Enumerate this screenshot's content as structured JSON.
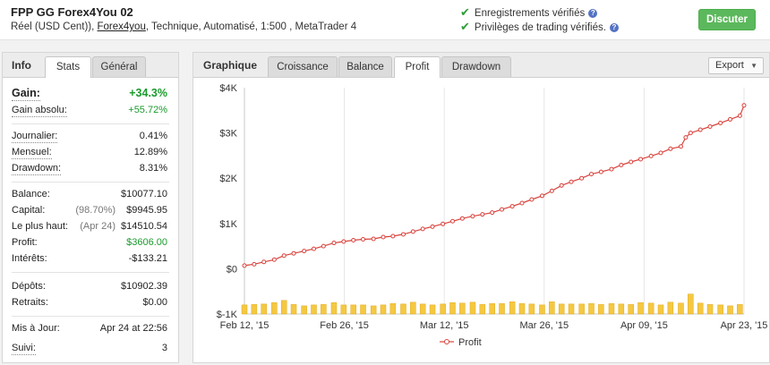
{
  "header": {
    "title": "FPP GG Forex4You 02",
    "meta_prefix": "Réel (USD Cent)),",
    "broker_link": "Forex4you",
    "meta_suffix": ", Technique, Automatisé, 1:500 , MetaTrader 4",
    "verified_records": "Enregistrements vérifiés",
    "verified_privileges": "Privilèges de trading vérifiés.",
    "discuss_label": "Discuter"
  },
  "left_tabs": {
    "head": "Info",
    "stats": "Stats",
    "general": "Général"
  },
  "stats": {
    "gain": {
      "label": "Gain:",
      "value": "+34.3%"
    },
    "abs_gain": {
      "label": "Gain absolu:",
      "value": "+55.72%"
    },
    "daily": {
      "label": "Journalier:",
      "value": "0.41%"
    },
    "monthly": {
      "label": "Mensuel:",
      "value": "12.89%"
    },
    "drawdown": {
      "label": "Drawdown:",
      "value": "8.31%"
    },
    "balance": {
      "label": "Balance:",
      "value": "$10077.10"
    },
    "equity": {
      "label": "Capital:",
      "note": "(98.70%)",
      "value": "$9945.95"
    },
    "highest": {
      "label": "Le plus haut:",
      "note": "(Apr 24)",
      "value": "$14510.54"
    },
    "profit": {
      "label": "Profit:",
      "value": "$3606.00"
    },
    "interest": {
      "label": "Intérêts:",
      "value": "-$133.21"
    },
    "deposits": {
      "label": "Dépôts:",
      "value": "$10902.39"
    },
    "withdrawals": {
      "label": "Retraits:",
      "value": "$0.00"
    },
    "updated": {
      "label": "Mis à Jour:",
      "value": "Apr 24 at 22:56"
    },
    "tracking": {
      "label": "Suivi:",
      "value": "3"
    }
  },
  "right_tabs": {
    "head": "Graphique",
    "growth": "Croissance",
    "balance": "Balance",
    "profit": "Profit",
    "drawdown": "Drawdown",
    "export": "Export"
  },
  "colors": {
    "line": "#d9423c",
    "bar": "#f5c842",
    "bar_edge": "#e0aa1c",
    "accent_green": "#1a9a2c",
    "button_green": "#5cb85c"
  },
  "icons": {
    "check": "check-icon",
    "help": "help-icon",
    "chevron": "chevron-down-icon"
  },
  "chart_data": {
    "type": "line",
    "y_ticks": [
      "$4K",
      "$3K",
      "$2K",
      "$1K",
      "$0",
      "$-1K"
    ],
    "y_tick_values": [
      4000,
      3000,
      2000,
      1000,
      0,
      -1000
    ],
    "ylim": [
      -1000,
      4000
    ],
    "x_ticks": [
      "Feb 12, '15",
      "Feb 26, '15",
      "Mar 12, '15",
      "Mar 26, '15",
      "Apr 09, '15",
      "Apr 23, '15"
    ],
    "x_range_days": [
      0,
      72
    ],
    "grid": "vertical",
    "legend_position": "bottom",
    "series": [
      {
        "name": "Profit",
        "type": "line",
        "points": [
          [
            0,
            70
          ],
          [
            1.4,
            100
          ],
          [
            2.8,
            150
          ],
          [
            4.3,
            200
          ],
          [
            5.7,
            290
          ],
          [
            7.1,
            340
          ],
          [
            8.6,
            390
          ],
          [
            10.0,
            440
          ],
          [
            11.4,
            500
          ],
          [
            12.9,
            570
          ],
          [
            14.3,
            600
          ],
          [
            15.7,
            630
          ],
          [
            17.1,
            650
          ],
          [
            18.6,
            660
          ],
          [
            20.0,
            700
          ],
          [
            21.4,
            720
          ],
          [
            22.9,
            760
          ],
          [
            24.3,
            820
          ],
          [
            25.7,
            880
          ],
          [
            27.1,
            930
          ],
          [
            28.6,
            990
          ],
          [
            30.0,
            1050
          ],
          [
            31.4,
            1110
          ],
          [
            32.9,
            1160
          ],
          [
            34.3,
            1200
          ],
          [
            35.7,
            1240
          ],
          [
            37.1,
            1310
          ],
          [
            38.6,
            1380
          ],
          [
            40.0,
            1450
          ],
          [
            41.4,
            1530
          ],
          [
            42.9,
            1610
          ],
          [
            44.3,
            1720
          ],
          [
            45.7,
            1840
          ],
          [
            47.1,
            1920
          ],
          [
            48.6,
            2000
          ],
          [
            50.0,
            2090
          ],
          [
            51.4,
            2140
          ],
          [
            52.9,
            2200
          ],
          [
            54.3,
            2290
          ],
          [
            55.7,
            2360
          ],
          [
            57.1,
            2420
          ],
          [
            58.6,
            2490
          ],
          [
            60.0,
            2560
          ],
          [
            61.4,
            2650
          ],
          [
            62.9,
            2700
          ],
          [
            63.6,
            2900
          ],
          [
            64.3,
            3000
          ],
          [
            65.7,
            3070
          ],
          [
            67.1,
            3140
          ],
          [
            68.6,
            3220
          ],
          [
            70.0,
            3300
          ],
          [
            71.4,
            3380
          ],
          [
            72.0,
            3610
          ]
        ]
      },
      {
        "name": "Daily profit",
        "type": "bar",
        "x": [
          0,
          1.4,
          2.8,
          4.3,
          5.7,
          7.1,
          8.6,
          10.0,
          11.4,
          12.9,
          14.3,
          15.7,
          17.1,
          18.6,
          20.0,
          21.4,
          22.9,
          24.3,
          25.7,
          27.1,
          28.6,
          30.0,
          31.4,
          32.9,
          34.3,
          35.7,
          37.1,
          38.6,
          40.0,
          41.4,
          42.9,
          44.3,
          45.7,
          47.1,
          48.6,
          50.0,
          51.4,
          52.9,
          54.3,
          55.7,
          57.1,
          58.6,
          60.0,
          61.4,
          62.9,
          64.3,
          65.7,
          67.1,
          68.6,
          70.0,
          71.4
        ],
        "values": [
          -800,
          -790,
          -780,
          -750,
          -700,
          -790,
          -820,
          -800,
          -790,
          -750,
          -800,
          -800,
          -800,
          -820,
          -800,
          -770,
          -780,
          -740,
          -780,
          -800,
          -780,
          -750,
          -760,
          -740,
          -790,
          -770,
          -770,
          -730,
          -770,
          -780,
          -800,
          -730,
          -780,
          -780,
          -780,
          -770,
          -790,
          -770,
          -780,
          -790,
          -750,
          -760,
          -800,
          -740,
          -760,
          -560,
          -760,
          -790,
          -800,
          -820,
          -790
        ]
      }
    ],
    "legend": [
      {
        "label": "Profit"
      }
    ]
  }
}
